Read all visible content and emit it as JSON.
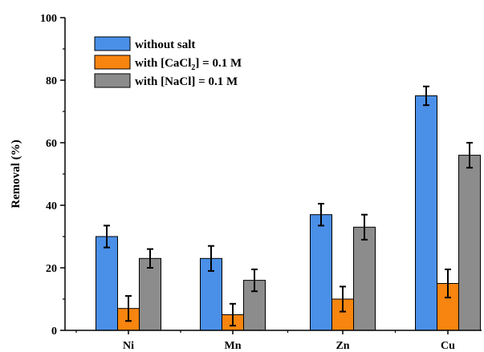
{
  "chart_data": {
    "type": "bar",
    "categories": [
      "Ni",
      "Mn",
      "Zn",
      "Cu"
    ],
    "series": [
      {
        "name_parts": [
          "without salt"
        ],
        "color": "#4a90e8",
        "values": [
          30,
          23,
          37,
          75
        ],
        "errors": [
          3.5,
          4,
          3.5,
          3
        ]
      },
      {
        "name_parts": [
          "with [CaCl",
          "2",
          "] = 0.1 M"
        ],
        "color": "#f7850f",
        "values": [
          7,
          5,
          10,
          15
        ],
        "errors": [
          4,
          3.5,
          4,
          4.5
        ]
      },
      {
        "name_parts": [
          "with  [NaCl] = 0.1 M"
        ],
        "color": "#8c8c8c",
        "values": [
          23,
          16,
          33,
          56
        ],
        "errors": [
          3,
          3.5,
          4,
          4
        ]
      }
    ],
    "ylabel": "Removal (%)",
    "xlabel": "",
    "ylim": [
      0,
      100
    ],
    "yticks": [
      0,
      20,
      40,
      60,
      80,
      100
    ],
    "legend_position": "top-left",
    "grid": false
  }
}
